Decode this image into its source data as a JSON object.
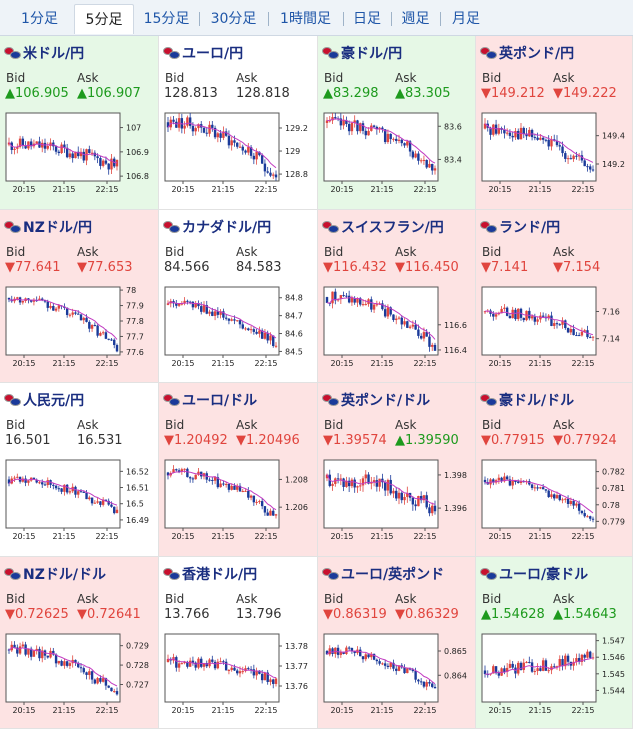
{
  "tabs": [
    {
      "label": "1分足",
      "active": false
    },
    {
      "label": "5分足",
      "active": true
    },
    {
      "label": "15分足",
      "active": false
    },
    {
      "label": "30分足",
      "active": false
    },
    {
      "label": "1時間足",
      "active": false
    },
    {
      "label": "日足",
      "active": false
    },
    {
      "label": "週足",
      "active": false
    },
    {
      "label": "月足",
      "active": false
    }
  ],
  "labels": {
    "bid": "Bid",
    "ask": "Ask"
  },
  "colors": {
    "up_bg": "#e6f8e6",
    "down_bg": "#fde3e3",
    "up_text": "#1d9a1d",
    "down_text": "#e0453e",
    "candle_up": "#e0453e",
    "candle_down": "#1a3a9a",
    "ma": "#c23cc2"
  },
  "pairs": [
    {
      "name": "米ドル/円",
      "flag": "us-jp-flag-icon",
      "status": "up",
      "bid": "▲106.905",
      "ask": "▲106.907",
      "bid_dir": "up",
      "ask_dir": "up",
      "chart_data": {
        "type": "candlestick",
        "x_ticks": [
          "20:15",
          "21:15",
          "22:15"
        ],
        "y_ticks": [
          "107",
          "106.9",
          "106.8"
        ],
        "ylim": [
          106.78,
          107.06
        ],
        "start": 106.93,
        "end": 106.84,
        "noise": 0.028,
        "seed": 11
      }
    },
    {
      "name": "ユーロ/円",
      "flag": "eu-jp-flag-icon",
      "status": "neutral",
      "bid": "128.813",
      "ask": "128.818",
      "bid_dir": "flat",
      "ask_dir": "flat",
      "chart_data": {
        "type": "candlestick",
        "x_ticks": [
          "20:15",
          "21:15",
          "22:15"
        ],
        "y_ticks": [
          "129.2",
          "129",
          "128.8"
        ],
        "ylim": [
          128.74,
          129.33
        ],
        "start": 129.25,
        "end": 128.78,
        "noise": 0.06,
        "seed": 23
      }
    },
    {
      "name": "豪ドル/円",
      "flag": "au-jp-flag-icon",
      "status": "up",
      "bid": "▲83.298",
      "ask": "▲83.305",
      "bid_dir": "up",
      "ask_dir": "up",
      "chart_data": {
        "type": "candlestick",
        "x_ticks": [
          "20:15",
          "21:15",
          "22:15"
        ],
        "y_ticks": [
          "83.6",
          "83.4"
        ],
        "ylim": [
          83.27,
          83.68
        ],
        "start": 83.62,
        "end": 83.35,
        "noise": 0.04,
        "seed": 37
      }
    },
    {
      "name": "英ポンド/円",
      "flag": "gb-jp-flag-icon",
      "status": "down",
      "bid": "▼149.212",
      "ask": "▼149.222",
      "bid_dir": "down",
      "ask_dir": "down",
      "chart_data": {
        "type": "candlestick",
        "x_ticks": [
          "20:15",
          "21:15",
          "22:15"
        ],
        "y_ticks": [
          "149.4",
          "149.2"
        ],
        "ylim": [
          149.08,
          149.56
        ],
        "start": 149.45,
        "end": 149.15,
        "noise": 0.05,
        "seed": 41
      }
    },
    {
      "name": "NZドル/円",
      "flag": "nz-jp-flag-icon",
      "status": "down",
      "bid": "▼77.641",
      "ask": "▼77.653",
      "bid_dir": "down",
      "ask_dir": "down",
      "chart_data": {
        "type": "candlestick",
        "x_ticks": [
          "20:15",
          "21:15",
          "22:15"
        ],
        "y_ticks": [
          "78",
          "77.9",
          "77.8",
          "77.7",
          "77.6"
        ],
        "ylim": [
          77.58,
          78.02
        ],
        "start": 77.95,
        "end": 77.63,
        "noise": 0.03,
        "seed": 53
      }
    },
    {
      "name": "カナダドル/円",
      "flag": "ca-jp-flag-icon",
      "status": "neutral",
      "bid": "84.566",
      "ask": "84.583",
      "bid_dir": "flat",
      "ask_dir": "flat",
      "chart_data": {
        "type": "candlestick",
        "x_ticks": [
          "20:15",
          "21:15",
          "22:15"
        ],
        "y_ticks": [
          "84.8",
          "84.7",
          "84.6",
          "84.5"
        ],
        "ylim": [
          84.48,
          84.86
        ],
        "start": 84.76,
        "end": 84.54,
        "noise": 0.03,
        "seed": 61
      }
    },
    {
      "name": "スイスフラン/円",
      "flag": "ch-jp-flag-icon",
      "status": "down",
      "bid": "▼116.432",
      "ask": "▼116.450",
      "bid_dir": "down",
      "ask_dir": "down",
      "chart_data": {
        "type": "candlestick",
        "x_ticks": [
          "20:15",
          "21:15",
          "22:15"
        ],
        "y_ticks": [
          "116.6",
          "116.4"
        ],
        "ylim": [
          116.36,
          116.9
        ],
        "start": 116.82,
        "end": 116.42,
        "noise": 0.05,
        "seed": 71
      }
    },
    {
      "name": "ランド/円",
      "flag": "za-jp-flag-icon",
      "status": "down",
      "bid": "▼7.141",
      "ask": "▼7.154",
      "bid_dir": "down",
      "ask_dir": "down",
      "chart_data": {
        "type": "candlestick",
        "x_ticks": [
          "20:15",
          "21:15",
          "22:15"
        ],
        "y_ticks": [
          "7.16",
          "7.14"
        ],
        "ylim": [
          7.128,
          7.178
        ],
        "start": 7.16,
        "end": 7.14,
        "noise": 0.004,
        "seed": 83
      }
    },
    {
      "name": "人民元/円",
      "flag": "cn-jp-flag-icon",
      "status": "neutral",
      "bid": "16.501",
      "ask": "16.531",
      "bid_dir": "flat",
      "ask_dir": "flat",
      "chart_data": {
        "type": "candlestick",
        "x_ticks": [
          "20:15",
          "21:15",
          "22:15"
        ],
        "y_ticks": [
          "16.52",
          "16.51",
          "16.5",
          "16.49"
        ],
        "ylim": [
          16.485,
          16.527
        ],
        "start": 16.515,
        "end": 16.495,
        "noise": 0.003,
        "seed": 97
      }
    },
    {
      "name": "ユーロ/ドル",
      "flag": "eu-us-flag-icon",
      "status": "down",
      "bid": "▼1.20492",
      "ask": "▼1.20496",
      "bid_dir": "down",
      "ask_dir": "down",
      "chart_data": {
        "type": "candlestick",
        "x_ticks": [
          "20:15",
          "21:15",
          "22:15"
        ],
        "y_ticks": [
          "1.208",
          "1.206"
        ],
        "ylim": [
          1.2045,
          1.2094
        ],
        "start": 1.2085,
        "end": 1.2052,
        "noise": 0.0004,
        "seed": 101
      }
    },
    {
      "name": "英ポンド/ドル",
      "flag": "gb-us-flag-icon",
      "status": "down",
      "bid": "▼1.39574",
      "ask": "▲1.39590",
      "bid_dir": "down",
      "ask_dir": "up",
      "chart_data": {
        "type": "candlestick",
        "x_ticks": [
          "20:15",
          "21:15",
          "22:15"
        ],
        "y_ticks": [
          "1.398",
          "1.396"
        ],
        "ylim": [
          1.3948,
          1.3989
        ],
        "start": 1.3978,
        "end": 1.396,
        "noise": 0.0005,
        "seed": 113
      }
    },
    {
      "name": "豪ドル/ドル",
      "flag": "au-us-flag-icon",
      "status": "down",
      "bid": "▼0.77915",
      "ask": "▼0.77924",
      "bid_dir": "down",
      "ask_dir": "down",
      "chart_data": {
        "type": "candlestick",
        "x_ticks": [
          "20:15",
          "21:15",
          "22:15"
        ],
        "y_ticks": [
          "0.782",
          "0.781",
          "0.78",
          "0.779"
        ],
        "ylim": [
          0.7786,
          0.7827
        ],
        "start": 0.7815,
        "end": 0.7792,
        "noise": 0.0003,
        "seed": 127
      }
    },
    {
      "name": "NZドル/ドル",
      "flag": "nz-us-flag-icon",
      "status": "down",
      "bid": "▼0.72625",
      "ask": "▼0.72641",
      "bid_dir": "down",
      "ask_dir": "down",
      "chart_data": {
        "type": "candlestick",
        "x_ticks": [
          "20:15",
          "21:15",
          "22:15"
        ],
        "y_ticks": [
          "0.729",
          "0.728",
          "0.727"
        ],
        "ylim": [
          0.7261,
          0.7296
        ],
        "start": 0.7288,
        "end": 0.7265,
        "noise": 0.0003,
        "seed": 131
      }
    },
    {
      "name": "香港ドル/円",
      "flag": "hk-jp-flag-icon",
      "status": "neutral",
      "bid": "13.766",
      "ask": "13.796",
      "bid_dir": "flat",
      "ask_dir": "flat",
      "chart_data": {
        "type": "candlestick",
        "x_ticks": [
          "20:15",
          "21:15",
          "22:15"
        ],
        "y_ticks": [
          "13.78",
          "13.77",
          "13.76"
        ],
        "ylim": [
          13.752,
          13.786
        ],
        "start": 13.772,
        "end": 13.762,
        "noise": 0.003,
        "seed": 139
      }
    },
    {
      "name": "ユーロ/英ポンド",
      "flag": "eu-gb-flag-icon",
      "status": "down",
      "bid": "▼0.86319",
      "ask": "▼0.86329",
      "bid_dir": "down",
      "ask_dir": "down",
      "chart_data": {
        "type": "candlestick",
        "x_ticks": [
          "20:15",
          "21:15",
          "22:15"
        ],
        "y_ticks": [
          "0.865",
          "0.864"
        ],
        "ylim": [
          0.8629,
          0.8657
        ],
        "start": 0.865,
        "end": 0.8634,
        "noise": 0.0002,
        "seed": 149
      }
    },
    {
      "name": "ユーロ/豪ドル",
      "flag": "eu-au-flag-icon",
      "status": "up",
      "bid": "▲1.54628",
      "ask": "▲1.54643",
      "bid_dir": "up",
      "ask_dir": "up",
      "chart_data": {
        "type": "candlestick",
        "x_ticks": [
          "20:15",
          "21:15",
          "22:15"
        ],
        "y_ticks": [
          "1.547",
          "1.546",
          "1.545",
          "1.544"
        ],
        "ylim": [
          1.5433,
          1.5474
        ],
        "start": 1.5452,
        "end": 1.5462,
        "noise": 0.0004,
        "seed": 151
      }
    }
  ]
}
